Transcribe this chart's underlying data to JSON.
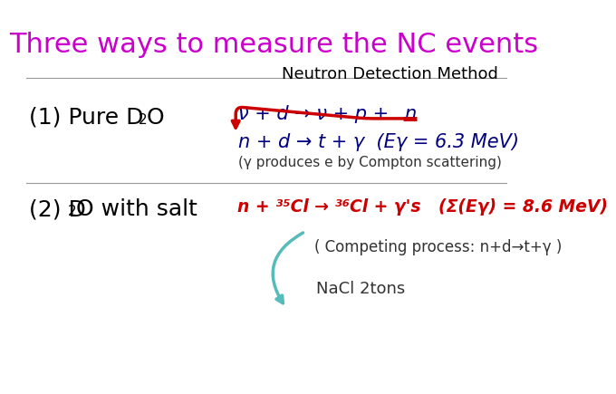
{
  "title": "Three ways to measure the NC events",
  "title_color": "#CC00CC",
  "title_fontsize": 22,
  "subtitle": "Neutron Detection Method",
  "subtitle_fontsize": 13,
  "subtitle_color": "#000000",
  "bg_color": "#FFFFFF",
  "line_color": "#999999",
  "sec1_label": "(1) Pure D",
  "sec1_label_fontsize": 18,
  "sec1_sub": "2",
  "sec1_O": "O",
  "sec1_eq1_main": "ν + d → ν + p + ",
  "sec1_eq1_n": "n",
  "sec1_eq1_color": "#000080",
  "sec1_eq2": "n + d → t + γ  (Eγ = 6.3 MeV)",
  "sec1_eq2_color": "#000080",
  "sec1_note": "(γ produces e by Compton scattering)",
  "sec1_note_color": "#333333",
  "sec2_label": "(2) D",
  "sec2_sub": "2",
  "sec2_rest": "O with salt",
  "sec2_label_fontsize": 18,
  "sec2_eq": "n + ³⁵Cl → ³⁶Cl + γ's   (Σ(Eγ) = 8.6 MeV)",
  "sec2_eq_color": "#CC0000",
  "sec2_note": "( Competing process: n+d→t+γ )",
  "sec2_note_color": "#333333",
  "sec2_nacl": "NaCl 2tons",
  "sec2_nacl_color": "#333333",
  "red_color": "#CC0000",
  "cyan_color": "#55BBBB"
}
